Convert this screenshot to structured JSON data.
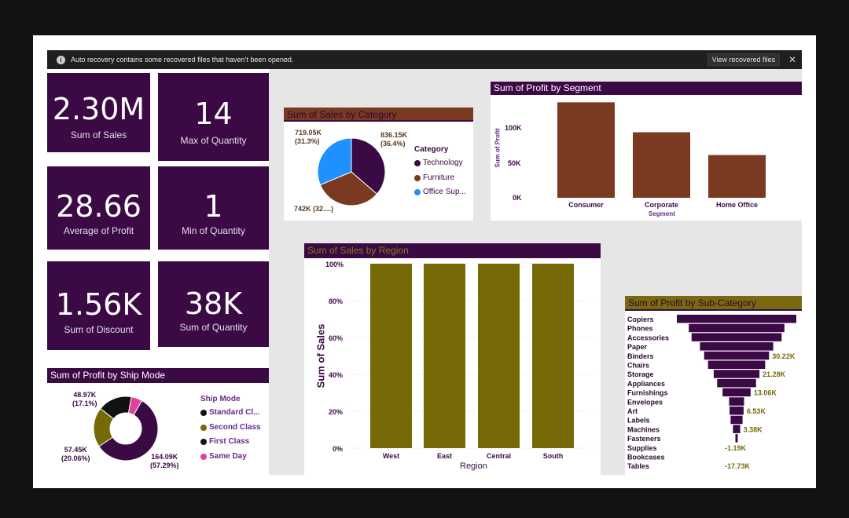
{
  "recovery": {
    "message": "Auto recovery contains some recovered files that haven't been opened.",
    "button": "View recovered files",
    "info_icon": "i",
    "close_icon": "✕"
  },
  "kpis": [
    {
      "value": "2.30M",
      "label": "Sum of Sales"
    },
    {
      "value": "14",
      "label": "Max of Quantity"
    },
    {
      "value": "28.66",
      "label": "Average of Profit"
    },
    {
      "value": "1",
      "label": "Min of Quantity"
    },
    {
      "value": "1.56K",
      "label": "Sum of Discount"
    },
    {
      "value": "38K",
      "label": "Sum of Quantity"
    }
  ],
  "colors": {
    "purple": "#3b0a45",
    "brown": "#7a3a21",
    "olive": "#756a06",
    "blue": "#1e90ff",
    "pink": "#e040a0",
    "black": "#111111"
  },
  "category_chart": {
    "title": "Sum of Sales by Category",
    "legend_title": "Category",
    "slices": [
      {
        "name": "Technology",
        "label": "836.15K",
        "pct": "(36.4%)",
        "value": 836.15,
        "color": "#3b0a45"
      },
      {
        "name": "Furniture",
        "label": "742K (32....)",
        "value": 742.0,
        "color": "#7a3a21"
      },
      {
        "name": "Office Sup...",
        "label": "719.05K",
        "pct": "(31.3%)",
        "value": 719.05,
        "color": "#1e90ff"
      }
    ]
  },
  "segment_chart": {
    "title": "Sum of Profit by Segment",
    "ylabel": "Sum of Profit",
    "xlabel": "Segment",
    "ticks": [
      "100K",
      "50K",
      "0K"
    ],
    "ymax": 130000,
    "bars": [
      {
        "name": "Consumer",
        "value": 134000
      },
      {
        "name": "Corporate",
        "value": 92000
      },
      {
        "name": "Home Office",
        "value": 60000
      }
    ]
  },
  "region_chart": {
    "title": "Sum of Sales by Region",
    "ylabel": "Sum of Sales",
    "xlabel": "Region",
    "ticks": [
      "100%",
      "80%",
      "60%",
      "40%",
      "20%",
      "0%"
    ],
    "bars": [
      {
        "name": "West",
        "value": 100
      },
      {
        "name": "East",
        "value": 100
      },
      {
        "name": "Central",
        "value": 100
      },
      {
        "name": "South",
        "value": 100
      }
    ]
  },
  "shipmode_chart": {
    "title": "Sum of Profit by Ship Mode",
    "legend_title": "Ship Mode",
    "slices": [
      {
        "name": "Standard Cl...",
        "value": 164.09,
        "label": "164.09K",
        "pct": "(57.29%)",
        "color": "#3b0a45"
      },
      {
        "name": "Second Class",
        "value": 57.45,
        "label": "57.45K",
        "pct": "(20.06%)",
        "color": "#756a06"
      },
      {
        "name": "First Class",
        "value": 48.97,
        "label": "48.97K",
        "pct": "(17.1%)",
        "color": "#111111"
      },
      {
        "name": "Same Day",
        "value": 15.9,
        "color": "#e040a0"
      }
    ]
  },
  "subcategory_chart": {
    "title": "Sum of Profit by Sub-Category",
    "rows": [
      {
        "name": "Copiers",
        "value": 55.6
      },
      {
        "name": "Phones",
        "value": 44.5
      },
      {
        "name": "Accessories",
        "value": 41.9
      },
      {
        "name": "Paper",
        "value": 34.1
      },
      {
        "name": "Binders",
        "value": 30.22,
        "label": "30.22K"
      },
      {
        "name": "Chairs",
        "value": 26.6
      },
      {
        "name": "Storage",
        "value": 21.28,
        "label": "21.28K"
      },
      {
        "name": "Appliances",
        "value": 18.1
      },
      {
        "name": "Furnishings",
        "value": 13.06,
        "label": "13.06K"
      },
      {
        "name": "Envelopes",
        "value": 6.96
      },
      {
        "name": "Art",
        "value": 6.53,
        "label": "6.53K"
      },
      {
        "name": "Labels",
        "value": 5.55
      },
      {
        "name": "Machines",
        "value": 3.38,
        "label": "3.38K"
      },
      {
        "name": "Fasteners",
        "value": 0.95
      },
      {
        "name": "Supplies",
        "value": -1.19,
        "label": "-1.19K"
      },
      {
        "name": "Bookcases",
        "value": -3.47
      },
      {
        "name": "Tables",
        "value": -17.73,
        "label": "-17.73K"
      }
    ]
  }
}
